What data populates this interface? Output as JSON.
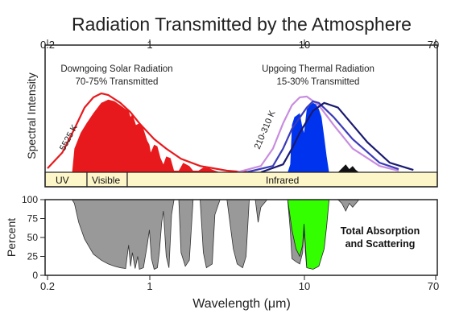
{
  "chart_data": [
    {
      "type": "area",
      "title": "Radiation Transmitted by the Atmosphere",
      "ylabel": "Spectral Intensity",
      "x_scale": "log",
      "xlim": [
        0.2,
        70
      ],
      "top_tick_labels": [
        "0.2",
        "1",
        "10",
        "70"
      ],
      "top_tick_values": [
        0.2,
        1,
        10,
        70
      ],
      "annotations": {
        "solar_title": "Downgoing Solar Radiation",
        "solar_subtitle": "70-75% Transmitted",
        "thermal_title": "Upgoing Thermal Radiation",
        "thermal_subtitle": "15-30% Transmitted",
        "solar_temp": "5525 K",
        "thermal_temp": "210-310 K"
      },
      "bands": [
        {
          "label": "UV",
          "from": 0.2,
          "to": 0.4
        },
        {
          "label": "Visible",
          "from": 0.4,
          "to": 0.7
        },
        {
          "label": "Infrared",
          "from": 0.7,
          "to": 70
        }
      ],
      "series": [
        {
          "kind": "curve",
          "color": "#e8191c",
          "points": [
            [
              0.2,
              0.05
            ],
            [
              0.25,
              0.25
            ],
            [
              0.3,
              0.55
            ],
            [
              0.35,
              0.82
            ],
            [
              0.4,
              0.95
            ],
            [
              0.45,
              1.0
            ],
            [
              0.5,
              0.98
            ],
            [
              0.6,
              0.88
            ],
            [
              0.7,
              0.76
            ],
            [
              0.8,
              0.62
            ],
            [
              1.0,
              0.42
            ],
            [
              1.2,
              0.3
            ],
            [
              1.5,
              0.17
            ],
            [
              2.0,
              0.08
            ],
            [
              3.0,
              0.02
            ],
            [
              4.0,
              0.0
            ]
          ]
        },
        {
          "kind": "curve",
          "color": "#c88ce0",
          "points": [
            [
              3.5,
              0.0
            ],
            [
              5,
              0.08
            ],
            [
              6,
              0.3
            ],
            [
              7,
              0.62
            ],
            [
              8,
              0.85
            ],
            [
              9,
              0.95
            ],
            [
              10,
              0.96
            ],
            [
              12,
              0.85
            ],
            [
              15,
              0.6
            ],
            [
              20,
              0.3
            ],
            [
              30,
              0.08
            ],
            [
              40,
              0.02
            ]
          ]
        },
        {
          "kind": "curve",
          "color": "#3b3bb8",
          "points": [
            [
              4,
              0.0
            ],
            [
              6,
              0.08
            ],
            [
              7,
              0.3
            ],
            [
              8,
              0.55
            ],
            [
              10,
              0.82
            ],
            [
              11,
              0.9
            ],
            [
              12,
              0.88
            ],
            [
              15,
              0.7
            ],
            [
              20,
              0.42
            ],
            [
              30,
              0.12
            ],
            [
              40,
              0.04
            ]
          ]
        },
        {
          "kind": "curve",
          "color": "#1a1a70",
          "points": [
            [
              5,
              0.0
            ],
            [
              7,
              0.1
            ],
            [
              8,
              0.3
            ],
            [
              9,
              0.5
            ],
            [
              11,
              0.78
            ],
            [
              13,
              0.88
            ],
            [
              16,
              0.82
            ],
            [
              20,
              0.6
            ],
            [
              25,
              0.38
            ],
            [
              35,
              0.12
            ],
            [
              50,
              0.03
            ]
          ]
        },
        {
          "kind": "fill",
          "color": "#e8191c",
          "points": [
            [
              0.29,
              0
            ],
            [
              0.3,
              0.3
            ],
            [
              0.33,
              0.5
            ],
            [
              0.36,
              0.62
            ],
            [
              0.4,
              0.75
            ],
            [
              0.45,
              0.88
            ],
            [
              0.5,
              0.92
            ],
            [
              0.55,
              0.9
            ],
            [
              0.6,
              0.85
            ],
            [
              0.65,
              0.8
            ],
            [
              0.68,
              0.78
            ],
            [
              0.7,
              0.7
            ],
            [
              0.72,
              0.74
            ],
            [
              0.76,
              0.6
            ],
            [
              0.8,
              0.62
            ],
            [
              0.85,
              0.55
            ],
            [
              0.9,
              0.4
            ],
            [
              0.93,
              0.35
            ],
            [
              0.95,
              0.25
            ],
            [
              1.0,
              0.35
            ],
            [
              1.05,
              0.33
            ],
            [
              1.1,
              0.18
            ],
            [
              1.15,
              0.1
            ],
            [
              1.2,
              0.2
            ],
            [
              1.28,
              0.18
            ],
            [
              1.35,
              0.02
            ],
            [
              1.45,
              0.02
            ],
            [
              1.55,
              0.12
            ],
            [
              1.7,
              0.08
            ],
            [
              1.8,
              0.02
            ],
            [
              1.95,
              0.02
            ],
            [
              2.1,
              0.06
            ],
            [
              2.3,
              0.05
            ],
            [
              2.5,
              0.02
            ],
            [
              2.7,
              0
            ],
            [
              3.5,
              0.01
            ],
            [
              4.0,
              0.02
            ],
            [
              4.2,
              0
            ]
          ]
        },
        {
          "kind": "fill",
          "color": "#0033ee",
          "points": [
            [
              7.5,
              0
            ],
            [
              7.8,
              0.1
            ],
            [
              8,
              0.6
            ],
            [
              8.3,
              0.7
            ],
            [
              8.6,
              0.72
            ],
            [
              9,
              0.75
            ],
            [
              9.3,
              0.6
            ],
            [
              9.6,
              0.5
            ],
            [
              10,
              0.8
            ],
            [
              10.5,
              0.85
            ],
            [
              11,
              0.88
            ],
            [
              11.5,
              0.86
            ],
            [
              12,
              0.8
            ],
            [
              12.5,
              0.7
            ],
            [
              13,
              0.45
            ],
            [
              13.5,
              0.2
            ],
            [
              14,
              0
            ]
          ]
        },
        {
          "kind": "fill",
          "color": "#111111",
          "points": [
            [
              16,
              0
            ],
            [
              17,
              0.05
            ],
            [
              18,
              0.1
            ],
            [
              19,
              0.04
            ],
            [
              20,
              0.08
            ],
            [
              21,
              0.03
            ],
            [
              22,
              0
            ]
          ]
        }
      ]
    },
    {
      "type": "area",
      "ylabel": "Percent",
      "xlabel": "Wavelength (μm)",
      "x_scale": "log",
      "xlim": [
        0.2,
        70
      ],
      "ylim": [
        0,
        100
      ],
      "x_tick_labels": [
        "0.2",
        "1",
        "10",
        "70"
      ],
      "x_tick_values": [
        0.2,
        1,
        10,
        70
      ],
      "y_tick_labels": [
        "0",
        "25",
        "50",
        "75",
        "100"
      ],
      "y_tick_values": [
        0,
        25,
        50,
        75,
        100
      ],
      "label": "Total Absorption and Scattering",
      "label_lines": [
        "Total Absorption",
        "and Scattering"
      ],
      "colors": {
        "absorption": "#999999",
        "window": "#33ff00"
      },
      "absorption": [
        [
          0.2,
          100
        ],
        [
          0.29,
          100
        ],
        [
          0.3,
          95
        ],
        [
          0.32,
          70
        ],
        [
          0.35,
          48
        ],
        [
          0.4,
          28
        ],
        [
          0.45,
          20
        ],
        [
          0.5,
          15
        ],
        [
          0.55,
          12
        ],
        [
          0.6,
          10
        ],
        [
          0.65,
          9
        ],
        [
          0.68,
          40
        ],
        [
          0.7,
          12
        ],
        [
          0.72,
          30
        ],
        [
          0.75,
          9
        ],
        [
          0.78,
          25
        ],
        [
          0.8,
          8
        ],
        [
          0.85,
          10
        ],
        [
          0.9,
          40
        ],
        [
          0.93,
          60
        ],
        [
          0.96,
          22
        ],
        [
          1.0,
          8
        ],
        [
          1.05,
          10
        ],
        [
          1.08,
          30
        ],
        [
          1.12,
          70
        ],
        [
          1.15,
          85
        ],
        [
          1.2,
          25
        ],
        [
          1.25,
          10
        ],
        [
          1.3,
          80
        ],
        [
          1.35,
          100
        ],
        [
          1.45,
          100
        ],
        [
          1.5,
          30
        ],
        [
          1.6,
          12
        ],
        [
          1.7,
          20
        ],
        [
          1.8,
          100
        ],
        [
          2.0,
          100
        ],
        [
          2.1,
          30
        ],
        [
          2.2,
          10
        ],
        [
          2.4,
          15
        ],
        [
          2.5,
          80
        ],
        [
          2.7,
          100
        ],
        [
          3.0,
          100
        ],
        [
          3.3,
          35
        ],
        [
          3.5,
          15
        ],
        [
          3.8,
          10
        ],
        [
          4.0,
          25
        ],
        [
          4.2,
          100
        ],
        [
          4.6,
          100
        ],
        [
          4.8,
          70
        ],
        [
          5.0,
          90
        ],
        [
          5.5,
          100
        ],
        [
          7.5,
          100
        ],
        [
          7.8,
          60
        ],
        [
          8.0,
          22
        ],
        [
          8.5,
          18
        ],
        [
          9.0,
          15
        ],
        [
          9.4,
          30
        ],
        [
          9.6,
          60
        ],
        [
          9.8,
          30
        ],
        [
          10.0,
          10
        ],
        [
          11.0,
          10
        ],
        [
          12.0,
          15
        ],
        [
          13.0,
          40
        ],
        [
          13.5,
          75
        ],
        [
          14.0,
          100
        ],
        [
          16,
          100
        ],
        [
          17,
          95
        ],
        [
          18,
          85
        ],
        [
          19,
          95
        ],
        [
          20,
          90
        ],
        [
          22,
          100
        ],
        [
          70,
          100
        ]
      ],
      "window": [
        [
          7.5,
          100
        ],
        [
          8,
          60
        ],
        [
          8.5,
          35
        ],
        [
          9,
          25
        ],
        [
          9.4,
          40
        ],
        [
          9.6,
          68
        ],
        [
          9.8,
          40
        ],
        [
          10,
          10
        ],
        [
          11,
          8
        ],
        [
          12,
          12
        ],
        [
          13,
          35
        ],
        [
          13.5,
          65
        ],
        [
          14,
          100
        ]
      ]
    }
  ]
}
